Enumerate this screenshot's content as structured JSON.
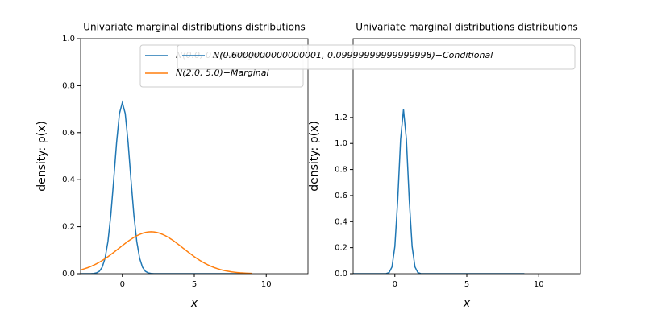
{
  "chart_data": [
    {
      "type": "line",
      "title": "Univariate marginal distributions distributions",
      "xlabel": "x",
      "ylabel": "density: p(x)",
      "x": [
        -3,
        -2.8,
        -2.6,
        -2.4,
        -2.2,
        -2,
        -1.8,
        -1.6,
        -1.4,
        -1.2,
        -1,
        -0.8,
        -0.6,
        -0.4,
        -0.2,
        0,
        0.2,
        0.4,
        0.6,
        0.8,
        1,
        1.2,
        1.4,
        1.6,
        1.8,
        2,
        2.2,
        2.4,
        2.6,
        2.8,
        3,
        3.2,
        3.4,
        3.6,
        3.8,
        4,
        4.2,
        4.4,
        4.6,
        4.8,
        5,
        5.2,
        5.4,
        5.6,
        5.8,
        6,
        6.2,
        6.4,
        6.6,
        6.8,
        7,
        7.2,
        7.4,
        7.6,
        7.8,
        8,
        8.2,
        8.4,
        8.6,
        8.8,
        9
      ],
      "series": [
        {
          "name": "N(0.0, 0.3)−Marginal",
          "color": "#1f77b4",
          "values": [
            0,
            0,
            0,
            0,
            0.0002,
            0.0009,
            0.0033,
            0.0102,
            0.0278,
            0.0661,
            0.1376,
            0.2507,
            0.3997,
            0.5579,
            0.6814,
            0.7284,
            0.6814,
            0.5579,
            0.3997,
            0.2507,
            0.1376,
            0.0661,
            0.0278,
            0.0102,
            0.0033,
            0.0009,
            0.0002,
            0,
            0,
            0,
            0,
            0,
            0,
            0,
            0,
            0,
            0,
            0,
            0,
            0,
            0,
            0,
            0,
            0,
            0,
            0,
            0,
            0,
            0,
            0,
            0,
            0,
            0,
            0,
            0,
            0,
            0,
            0,
            0,
            0,
            0
          ]
        },
        {
          "name": "N(2.0, 5.0)−Marginal",
          "color": "#ff7f0e",
          "values": [
            0.0146,
            0.0178,
            0.0215,
            0.0257,
            0.0306,
            0.036,
            0.0421,
            0.0488,
            0.0561,
            0.0641,
            0.0725,
            0.0815,
            0.0907,
            0.1003,
            0.1099,
            0.1196,
            0.129,
            0.1381,
            0.1466,
            0.1545,
            0.1614,
            0.1673,
            0.1721,
            0.1756,
            0.1777,
            0.1784,
            0.1777,
            0.1756,
            0.1721,
            0.1673,
            0.1614,
            0.1545,
            0.1466,
            0.1381,
            0.129,
            0.1196,
            0.1099,
            0.1003,
            0.0907,
            0.0815,
            0.0725,
            0.0641,
            0.0561,
            0.0488,
            0.0421,
            0.036,
            0.0306,
            0.0257,
            0.0215,
            0.0178,
            0.0146,
            0.0119,
            0.0097,
            0.0077,
            0.0062,
            0.0049,
            0.0038,
            0.003,
            0.0023,
            0.0017,
            0.0013
          ]
        }
      ],
      "xlim": [
        -2.9,
        12.9
      ],
      "xticks": [
        0,
        5,
        10
      ],
      "ylim": [
        0,
        1
      ],
      "yticks": [
        {
          "value": 0,
          "label": "0.0"
        },
        {
          "value": 0.2,
          "label": "0.2"
        },
        {
          "value": 0.4,
          "label": "0.4"
        },
        {
          "value": 0.6,
          "label": "0.6"
        },
        {
          "value": 0.8,
          "label": "0.8"
        },
        {
          "value": 1,
          "label": "1.0"
        }
      ]
    },
    {
      "type": "line",
      "title": "Univariate marginal distributions distributions",
      "xlabel": "x",
      "ylabel": "density: p(x)",
      "x": [
        -3,
        -2.8,
        -2.6,
        -2.4,
        -2.2,
        -2,
        -1.8,
        -1.6,
        -1.4,
        -1.2,
        -1,
        -0.8,
        -0.6,
        -0.4,
        -0.2,
        0,
        0.2,
        0.4,
        0.6,
        0.8,
        1,
        1.2,
        1.4,
        1.6,
        1.8,
        2,
        2.2,
        2.4,
        2.6,
        2.8,
        3,
        3.2,
        3.4,
        3.6,
        3.8,
        4,
        4.2,
        4.4,
        4.6,
        4.8,
        5,
        5.2,
        5.4,
        5.6,
        5.8,
        6,
        6.2,
        6.4,
        6.6,
        6.8,
        7,
        7.2,
        7.4,
        7.6,
        7.8,
        8,
        8.2,
        8.4,
        8.6,
        8.8,
        9
      ],
      "series": [
        {
          "name": "N(0.6000000000000001, 0.09999999999999998)−Conditional",
          "color": "#1f77b4",
          "values": [
            0,
            0,
            0,
            0,
            0,
            0,
            0,
            0,
            0,
            0,
            0,
            0,
            0.0009,
            0.0085,
            0.0514,
            0.2085,
            0.5669,
            1.0329,
            1.2616,
            1.0329,
            0.5669,
            0.2085,
            0.0514,
            0.0085,
            0.0009,
            0,
            0,
            0,
            0,
            0,
            0,
            0,
            0,
            0,
            0,
            0,
            0,
            0,
            0,
            0,
            0,
            0,
            0,
            0,
            0,
            0,
            0,
            0,
            0,
            0,
            0,
            0,
            0,
            0,
            0,
            0,
            0,
            0,
            0,
            0,
            0
          ]
        }
      ],
      "xlim": [
        -2.9,
        12.9
      ],
      "xticks": [
        0,
        5,
        10
      ],
      "ylim": [
        0,
        1.805
      ],
      "yticks": [
        {
          "value": 0,
          "label": "0.0"
        },
        {
          "value": 0.2,
          "label": "0.2"
        },
        {
          "value": 0.4,
          "label": "0.4"
        },
        {
          "value": 0.6,
          "label": "0.6"
        },
        {
          "value": 0.8,
          "label": "0.8"
        },
        {
          "value": 1,
          "label": "1.0"
        },
        {
          "value": 1.2,
          "label": "1.2"
        }
      ]
    }
  ]
}
